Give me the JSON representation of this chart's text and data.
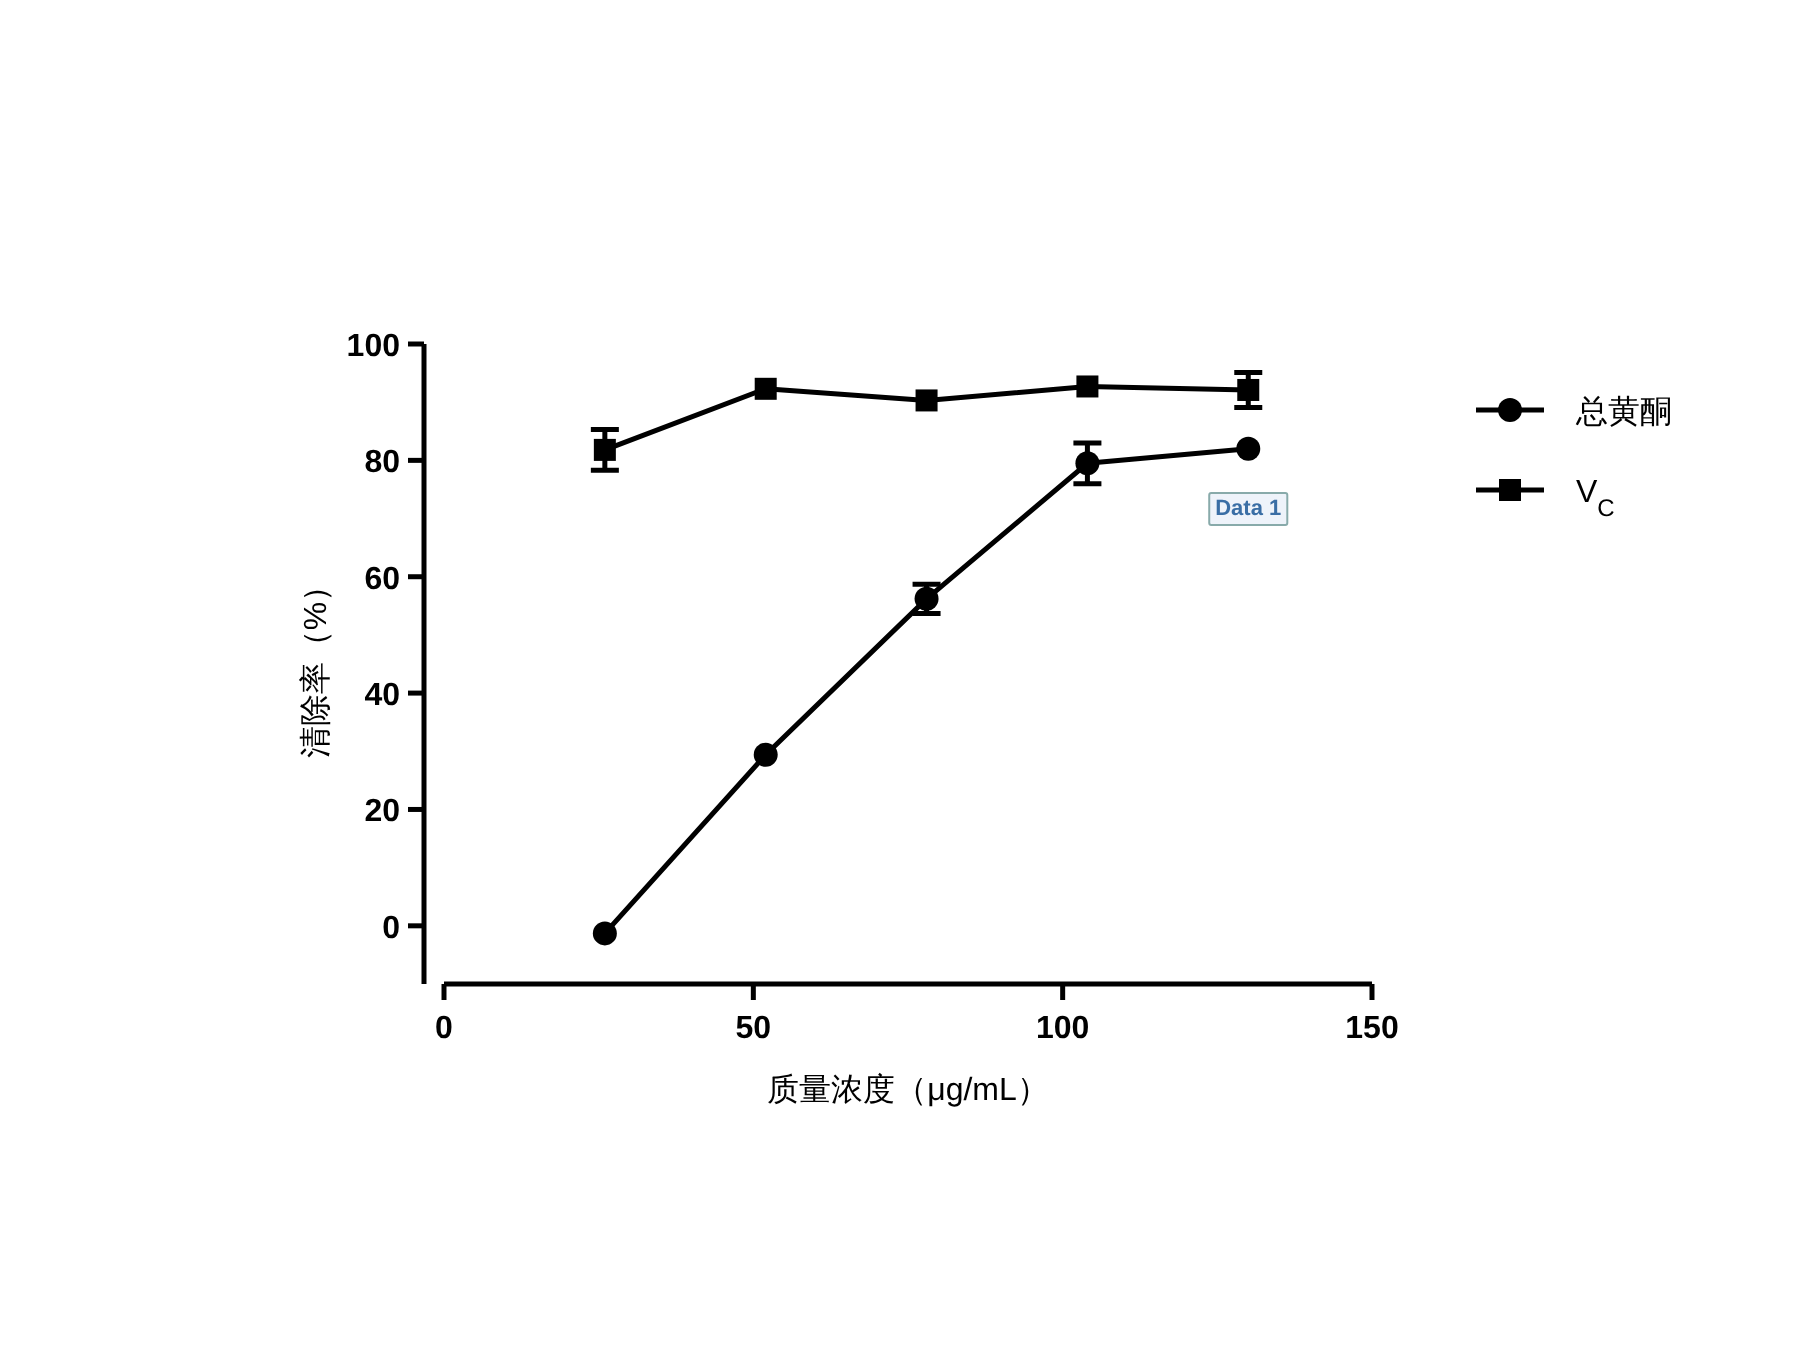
{
  "chart_data": {
    "type": "line",
    "xlabel": "质量浓度（μg/mL）",
    "ylabel": "清除率（%）",
    "x": [
      26,
      52,
      78,
      104,
      130
    ],
    "xlim": [
      0,
      150
    ],
    "xticks": [
      0,
      50,
      100,
      150
    ],
    "ylim": [
      -10,
      100
    ],
    "yticks": [
      0,
      20,
      40,
      60,
      80,
      100
    ],
    "legend": "right",
    "grid": false,
    "series": [
      {
        "name": "总黄酮",
        "color": "#000000",
        "marker": "circle",
        "values": [
          -1.3,
          29.4,
          56.2,
          79.5,
          82
        ],
        "errors": [
          null,
          null,
          2.5,
          3.5,
          null
        ]
      },
      {
        "name": "V$_{C}$",
        "color": "#000000",
        "marker": "square",
        "values": [
          81.8,
          92.3,
          90.3,
          92.7,
          92.1
        ],
        "errors": [
          3.5,
          null,
          null,
          null,
          3
        ]
      }
    ],
    "annotations": [
      {
        "text": "Data 1",
        "x": 130,
        "y": 72
      }
    ]
  }
}
